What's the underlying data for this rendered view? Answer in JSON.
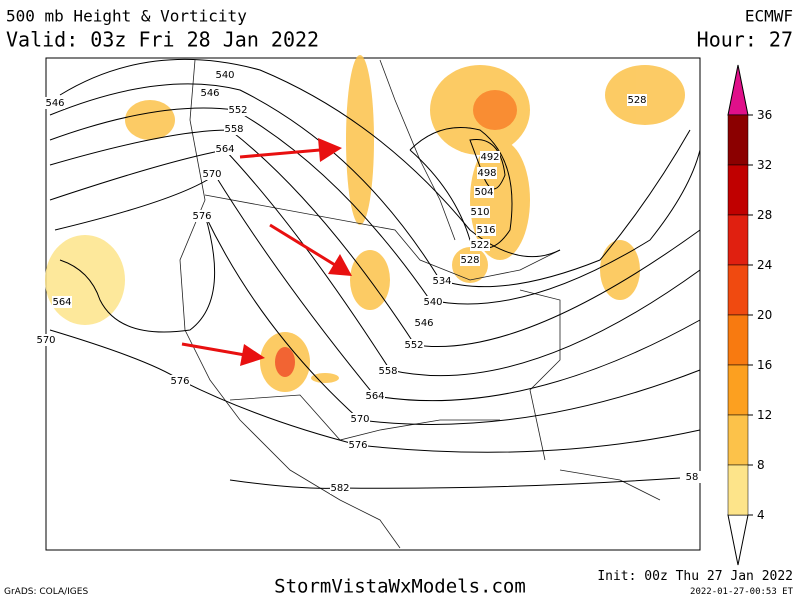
{
  "header": {
    "title": "500 mb Height & Vorticity",
    "valid": "Valid: 03z Fri 28 Jan 2022",
    "model": "ECMWF",
    "hour": "Hour: 27"
  },
  "footer": {
    "credit": "GrADS: COLA/IGES",
    "site": "StormVistaWxModels.com",
    "init": "Init: 00z Thu 27 Jan 2022",
    "stamp": "2022-01-27-00:53 ET"
  },
  "contour_labels": [
    540,
    546,
    552,
    558,
    564,
    570,
    576,
    546,
    564,
    570,
    576,
    492,
    498,
    504,
    510,
    516,
    522,
    528,
    534,
    540,
    546,
    552,
    558,
    564,
    570,
    576,
    582,
    528,
    58
  ],
  "colorbar": {
    "ticks": [
      36,
      32,
      28,
      24,
      20,
      16,
      12,
      8,
      4
    ],
    "colors": [
      "#8b0000",
      "#c00000",
      "#e02010",
      "#f04a10",
      "#f87a10",
      "#fca020",
      "#fcc24a",
      "#fde48a"
    ]
  }
}
